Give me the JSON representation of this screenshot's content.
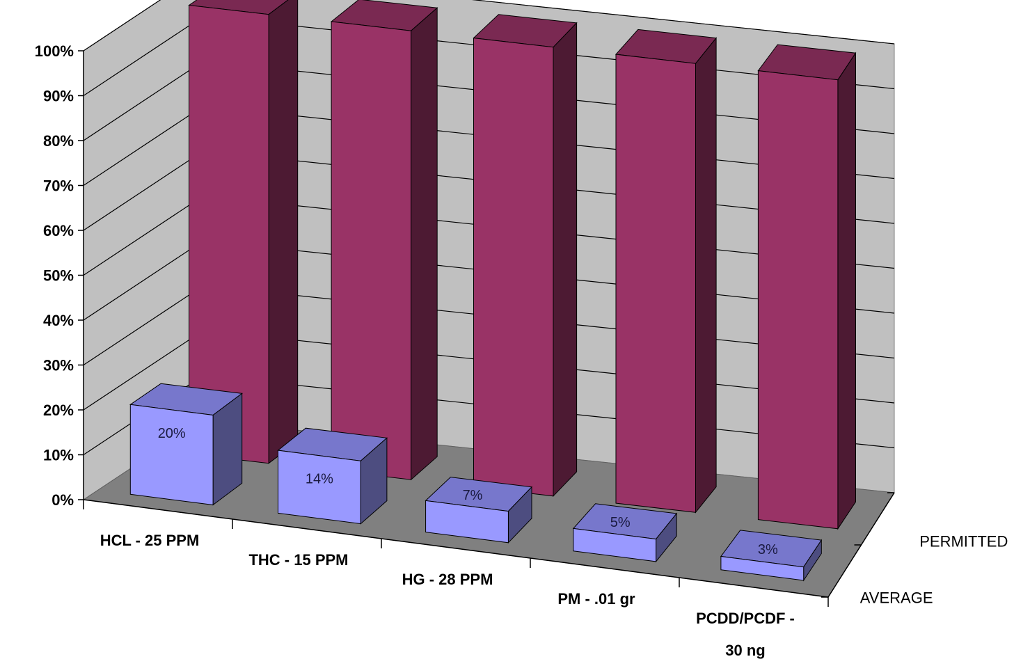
{
  "chart_data": {
    "type": "bar",
    "style": "3d-column",
    "categories": [
      [
        "HCL - 25 PPM"
      ],
      [
        "THC - 15 PPM"
      ],
      [
        "HG - 28 PPM"
      ],
      [
        "PM  - .01 gr"
      ],
      [
        "PCDD/PCDF -",
        "30 ng"
      ]
    ],
    "series": [
      {
        "name": "AVERAGE",
        "values": [
          20,
          14,
          7,
          5,
          3
        ],
        "data_labels": [
          "20%",
          "14%",
          "7%",
          "5%",
          "3%"
        ],
        "color": "#9999ff"
      },
      {
        "name": "PERMITTED",
        "values": [
          100,
          100,
          100,
          100,
          100
        ],
        "color": "#993366"
      }
    ],
    "ylim": [
      0,
      100
    ],
    "yticks": [
      "0%",
      "10%",
      "20%",
      "30%",
      "40%",
      "50%",
      "60%",
      "70%",
      "80%",
      "90%",
      "100%"
    ],
    "grid": true,
    "colors": {
      "back_wall": "#c0c0c0",
      "floor": "#808080",
      "average_front": "#9999ff",
      "average_top": "#7777cc",
      "average_side": "#4d4d80",
      "permitted_front": "#993366",
      "permitted_top": "#7a2952",
      "permitted_side": "#4d1a33"
    }
  }
}
